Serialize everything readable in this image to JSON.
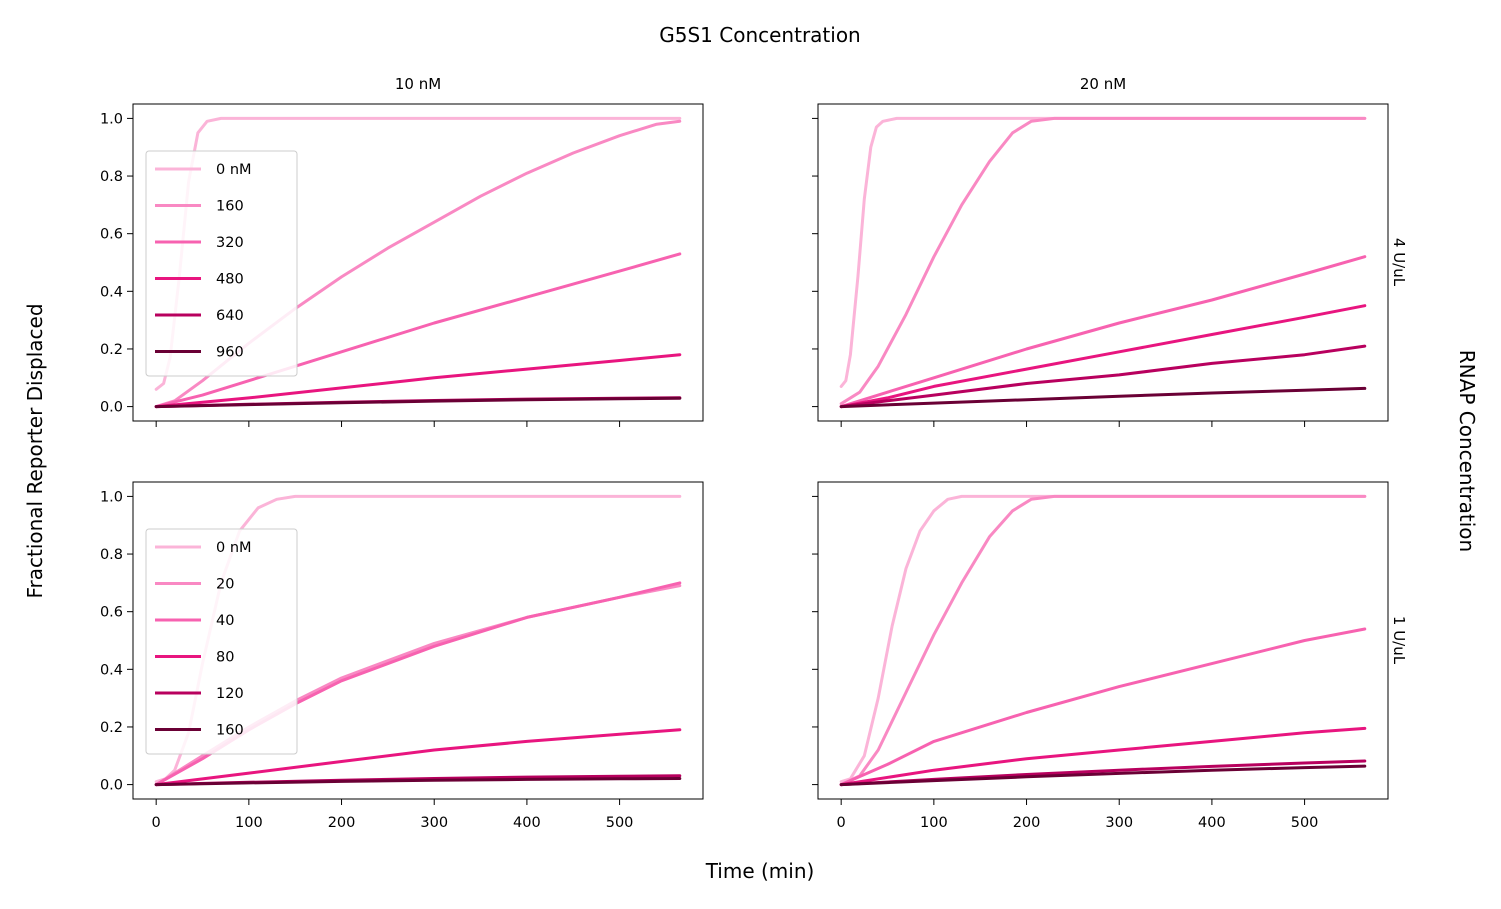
{
  "figure": {
    "suptitle": "G5S1 Concentration",
    "xlabel": "Time (min)",
    "ylabel": "Fractional Reporter Displaced",
    "right_label": "RNAP Concentration",
    "col_titles": [
      "10 nM",
      "20 nM"
    ],
    "row_titles": [
      "4 U/uL",
      "1 U/uL"
    ]
  },
  "chart_data": [
    {
      "type": "line",
      "title": "10 nM",
      "row_title": "4 U/uL",
      "xlim": [
        -25,
        590
      ],
      "ylim": [
        -0.05,
        1.05
      ],
      "xticks": [
        0,
        100,
        200,
        300,
        400,
        500
      ],
      "yticks": [
        0.0,
        0.2,
        0.4,
        0.6,
        0.8,
        1.0
      ],
      "legend": "upper-left",
      "series": [
        {
          "name": "0 nM",
          "color": "#fbb4d8",
          "points": [
            [
              0,
              0.06
            ],
            [
              8,
              0.08
            ],
            [
              15,
              0.17
            ],
            [
              25,
              0.45
            ],
            [
              35,
              0.78
            ],
            [
              45,
              0.95
            ],
            [
              55,
              0.99
            ],
            [
              70,
              1.0
            ],
            [
              100,
              1.0
            ],
            [
              300,
              1.0
            ],
            [
              500,
              1.0
            ],
            [
              565,
              1.0
            ]
          ]
        },
        {
          "name": "160",
          "color": "#f989c3",
          "points": [
            [
              0,
              0.0
            ],
            [
              20,
              0.02
            ],
            [
              50,
              0.09
            ],
            [
              100,
              0.22
            ],
            [
              150,
              0.34
            ],
            [
              200,
              0.45
            ],
            [
              250,
              0.55
            ],
            [
              300,
              0.64
            ],
            [
              350,
              0.73
            ],
            [
              400,
              0.81
            ],
            [
              450,
              0.88
            ],
            [
              500,
              0.94
            ],
            [
              540,
              0.98
            ],
            [
              565,
              0.99
            ]
          ]
        },
        {
          "name": "320",
          "color": "#f762b0",
          "points": [
            [
              0,
              0.0
            ],
            [
              50,
              0.04
            ],
            [
              100,
              0.09
            ],
            [
              200,
              0.19
            ],
            [
              300,
              0.29
            ],
            [
              400,
              0.38
            ],
            [
              500,
              0.47
            ],
            [
              565,
              0.53
            ]
          ]
        },
        {
          "name": "480",
          "color": "#e8157f",
          "points": [
            [
              0,
              0.0
            ],
            [
              100,
              0.03
            ],
            [
              200,
              0.065
            ],
            [
              300,
              0.1
            ],
            [
              400,
              0.13
            ],
            [
              500,
              0.16
            ],
            [
              565,
              0.18
            ]
          ]
        },
        {
          "name": "640",
          "color": "#b8005e",
          "points": [
            [
              0,
              0.0
            ],
            [
              100,
              0.008
            ],
            [
              200,
              0.015
            ],
            [
              300,
              0.021
            ],
            [
              400,
              0.026
            ],
            [
              500,
              0.029
            ],
            [
              565,
              0.031
            ]
          ]
        },
        {
          "name": "960",
          "color": "#6a0035",
          "points": [
            [
              0,
              0.0
            ],
            [
              100,
              0.007
            ],
            [
              200,
              0.013
            ],
            [
              300,
              0.019
            ],
            [
              400,
              0.024
            ],
            [
              500,
              0.027
            ],
            [
              565,
              0.029
            ]
          ]
        }
      ]
    },
    {
      "type": "line",
      "title": "20 nM",
      "row_title": "4 U/uL",
      "xlim": [
        -25,
        590
      ],
      "ylim": [
        -0.05,
        1.05
      ],
      "xticks": [
        0,
        100,
        200,
        300,
        400,
        500
      ],
      "yticks": [
        0.0,
        0.2,
        0.4,
        0.6,
        0.8,
        1.0
      ],
      "series": [
        {
          "color": "#fbb4d8",
          "points": [
            [
              0,
              0.07
            ],
            [
              5,
              0.09
            ],
            [
              10,
              0.18
            ],
            [
              18,
              0.45
            ],
            [
              25,
              0.72
            ],
            [
              32,
              0.9
            ],
            [
              38,
              0.97
            ],
            [
              45,
              0.99
            ],
            [
              60,
              1.0
            ],
            [
              300,
              1.0
            ],
            [
              565,
              1.0
            ]
          ]
        },
        {
          "color": "#f989c3",
          "points": [
            [
              0,
              0.01
            ],
            [
              20,
              0.05
            ],
            [
              40,
              0.14
            ],
            [
              70,
              0.32
            ],
            [
              100,
              0.52
            ],
            [
              130,
              0.7
            ],
            [
              160,
              0.85
            ],
            [
              185,
              0.95
            ],
            [
              205,
              0.99
            ],
            [
              230,
              1.0
            ],
            [
              565,
              1.0
            ]
          ]
        },
        {
          "color": "#f762b0",
          "points": [
            [
              0,
              0.0
            ],
            [
              50,
              0.05
            ],
            [
              100,
              0.1
            ],
            [
              200,
              0.2
            ],
            [
              300,
              0.29
            ],
            [
              400,
              0.37
            ],
            [
              500,
              0.46
            ],
            [
              565,
              0.52
            ]
          ]
        },
        {
          "color": "#e8157f",
          "points": [
            [
              0,
              0.0
            ],
            [
              50,
              0.03
            ],
            [
              100,
              0.07
            ],
            [
              200,
              0.13
            ],
            [
              300,
              0.19
            ],
            [
              400,
              0.25
            ],
            [
              500,
              0.31
            ],
            [
              565,
              0.35
            ]
          ]
        },
        {
          "color": "#b8005e",
          "points": [
            [
              0,
              0.0
            ],
            [
              50,
              0.02
            ],
            [
              100,
              0.04
            ],
            [
              200,
              0.08
            ],
            [
              300,
              0.11
            ],
            [
              400,
              0.15
            ],
            [
              500,
              0.18
            ],
            [
              565,
              0.21
            ]
          ]
        },
        {
          "color": "#6a0035",
          "points": [
            [
              0,
              0.0
            ],
            [
              100,
              0.012
            ],
            [
              200,
              0.024
            ],
            [
              300,
              0.036
            ],
            [
              400,
              0.047
            ],
            [
              500,
              0.057
            ],
            [
              565,
              0.063
            ]
          ]
        }
      ]
    },
    {
      "type": "line",
      "title": "10 nM",
      "row_title": "1 U/uL",
      "xlim": [
        -25,
        590
      ],
      "ylim": [
        -0.05,
        1.05
      ],
      "xticks": [
        0,
        100,
        200,
        300,
        400,
        500
      ],
      "yticks": [
        0.0,
        0.2,
        0.4,
        0.6,
        0.8,
        1.0
      ],
      "legend": "upper-left",
      "series": [
        {
          "name": "0 nM",
          "color": "#fbb4d8",
          "points": [
            [
              0,
              0.01
            ],
            [
              10,
              0.02
            ],
            [
              20,
              0.05
            ],
            [
              35,
              0.18
            ],
            [
              50,
              0.42
            ],
            [
              70,
              0.7
            ],
            [
              90,
              0.88
            ],
            [
              110,
              0.96
            ],
            [
              130,
              0.99
            ],
            [
              150,
              1.0
            ],
            [
              565,
              1.0
            ]
          ]
        },
        {
          "name": "20",
          "color": "#f989c3",
          "points": [
            [
              0,
              0.0
            ],
            [
              50,
              0.1
            ],
            [
              100,
              0.2
            ],
            [
              150,
              0.29
            ],
            [
              200,
              0.37
            ],
            [
              300,
              0.49
            ],
            [
              400,
              0.58
            ],
            [
              500,
              0.65
            ],
            [
              565,
              0.69
            ]
          ]
        },
        {
          "name": "40",
          "color": "#f762b0",
          "points": [
            [
              0,
              0.0
            ],
            [
              50,
              0.09
            ],
            [
              100,
              0.19
            ],
            [
              150,
              0.28
            ],
            [
              200,
              0.36
            ],
            [
              300,
              0.48
            ],
            [
              400,
              0.58
            ],
            [
              500,
              0.65
            ],
            [
              565,
              0.7
            ]
          ]
        },
        {
          "name": "80",
          "color": "#e8157f",
          "points": [
            [
              0,
              0.0
            ],
            [
              100,
              0.04
            ],
            [
              200,
              0.08
            ],
            [
              300,
              0.12
            ],
            [
              400,
              0.15
            ],
            [
              500,
              0.175
            ],
            [
              565,
              0.19
            ]
          ]
        },
        {
          "name": "120",
          "color": "#b8005e",
          "points": [
            [
              0,
              0.0
            ],
            [
              100,
              0.008
            ],
            [
              200,
              0.015
            ],
            [
              300,
              0.021
            ],
            [
              400,
              0.026
            ],
            [
              500,
              0.029
            ],
            [
              565,
              0.031
            ]
          ]
        },
        {
          "name": "160",
          "color": "#6a0035",
          "points": [
            [
              0,
              0.0
            ],
            [
              100,
              0.006
            ],
            [
              200,
              0.011
            ],
            [
              300,
              0.015
            ],
            [
              400,
              0.018
            ],
            [
              500,
              0.02
            ],
            [
              565,
              0.021
            ]
          ]
        }
      ]
    },
    {
      "type": "line",
      "title": "20 nM",
      "row_title": "1 U/uL",
      "xlim": [
        -25,
        590
      ],
      "ylim": [
        -0.05,
        1.05
      ],
      "xticks": [
        0,
        100,
        200,
        300,
        400,
        500
      ],
      "yticks": [
        0.0,
        0.2,
        0.4,
        0.6,
        0.8,
        1.0
      ],
      "series": [
        {
          "color": "#fbb4d8",
          "points": [
            [
              0,
              0.01
            ],
            [
              10,
              0.02
            ],
            [
              25,
              0.1
            ],
            [
              40,
              0.3
            ],
            [
              55,
              0.55
            ],
            [
              70,
              0.75
            ],
            [
              85,
              0.88
            ],
            [
              100,
              0.95
            ],
            [
              115,
              0.99
            ],
            [
              130,
              1.0
            ],
            [
              565,
              1.0
            ]
          ]
        },
        {
          "color": "#f989c3",
          "points": [
            [
              0,
              0.0
            ],
            [
              20,
              0.03
            ],
            [
              40,
              0.12
            ],
            [
              70,
              0.32
            ],
            [
              100,
              0.52
            ],
            [
              130,
              0.7
            ],
            [
              160,
              0.86
            ],
            [
              185,
              0.95
            ],
            [
              205,
              0.99
            ],
            [
              230,
              1.0
            ],
            [
              565,
              1.0
            ]
          ]
        },
        {
          "color": "#f762b0",
          "points": [
            [
              0,
              0.0
            ],
            [
              50,
              0.07
            ],
            [
              100,
              0.15
            ],
            [
              200,
              0.25
            ],
            [
              300,
              0.34
            ],
            [
              400,
              0.42
            ],
            [
              500,
              0.5
            ],
            [
              565,
              0.54
            ]
          ]
        },
        {
          "color": "#e8157f",
          "points": [
            [
              0,
              0.0
            ],
            [
              100,
              0.05
            ],
            [
              200,
              0.09
            ],
            [
              300,
              0.12
            ],
            [
              400,
              0.15
            ],
            [
              500,
              0.18
            ],
            [
              565,
              0.195
            ]
          ]
        },
        {
          "color": "#b8005e",
          "points": [
            [
              0,
              0.0
            ],
            [
              100,
              0.018
            ],
            [
              200,
              0.035
            ],
            [
              300,
              0.05
            ],
            [
              400,
              0.063
            ],
            [
              500,
              0.075
            ],
            [
              565,
              0.082
            ]
          ]
        },
        {
          "color": "#6a0035",
          "points": [
            [
              0,
              0.0
            ],
            [
              100,
              0.014
            ],
            [
              200,
              0.027
            ],
            [
              300,
              0.039
            ],
            [
              400,
              0.05
            ],
            [
              500,
              0.059
            ],
            [
              565,
              0.064
            ]
          ]
        }
      ]
    }
  ]
}
